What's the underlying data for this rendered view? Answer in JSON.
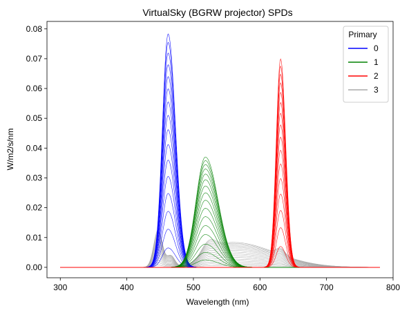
{
  "chart_data": {
    "type": "line",
    "title": "VirtualSky (BGRW projector) SPDs",
    "xlabel": "Wavelength (nm)",
    "ylabel": "W/m2/s/nm",
    "xlim": [
      280,
      800
    ],
    "ylim": [
      -0.0035,
      0.0825
    ],
    "x_ticks": [
      300,
      400,
      500,
      600,
      700,
      800
    ],
    "y_ticks": [
      0.0,
      0.01,
      0.02,
      0.03,
      0.04,
      0.05,
      0.06,
      0.07,
      0.08
    ],
    "x_range_of_curves": [
      300,
      780
    ],
    "grid": false,
    "legend": {
      "title": "Primary",
      "position": "top-right",
      "entries": [
        "0",
        "1",
        "2",
        "3"
      ]
    },
    "curves_per_primary": 16,
    "series": [
      {
        "name": "0",
        "color": "#0000ff",
        "peak_wavelength": 462,
        "peak_values": [
          0.0783,
          0.0755,
          0.0719,
          0.068,
          0.064,
          0.0599,
          0.0555,
          0.051,
          0.0462,
          0.0412,
          0.036,
          0.0305,
          0.0248,
          0.0188,
          0.0128,
          0.0065
        ]
      },
      {
        "name": "1",
        "color": "#008000",
        "peak_wavelength": 518,
        "peak_values": [
          0.037,
          0.0358,
          0.0345,
          0.033,
          0.0313,
          0.0294,
          0.0273,
          0.025,
          0.0225,
          0.0198,
          0.017,
          0.014,
          0.011,
          0.0078,
          0.005,
          0.0025
        ]
      },
      {
        "name": "2",
        "color": "#ff0000",
        "peak_wavelength": 631,
        "peak_values": [
          0.0699,
          0.0675,
          0.0648,
          0.0619,
          0.0587,
          0.0553,
          0.0517,
          0.0478,
          0.0437,
          0.0393,
          0.0347,
          0.0298,
          0.0246,
          0.0191,
          0.0133,
          0.007
        ]
      },
      {
        "name": "3",
        "color": "#a9a9a9",
        "peak_wavelength": 560,
        "peak_values": [
          0.0128,
          0.0123,
          0.0117,
          0.011,
          0.0103,
          0.0095,
          0.0087,
          0.0078,
          0.0069,
          0.006,
          0.0051,
          0.0042,
          0.0033,
          0.0024,
          0.0016,
          0.0008
        ]
      }
    ]
  }
}
